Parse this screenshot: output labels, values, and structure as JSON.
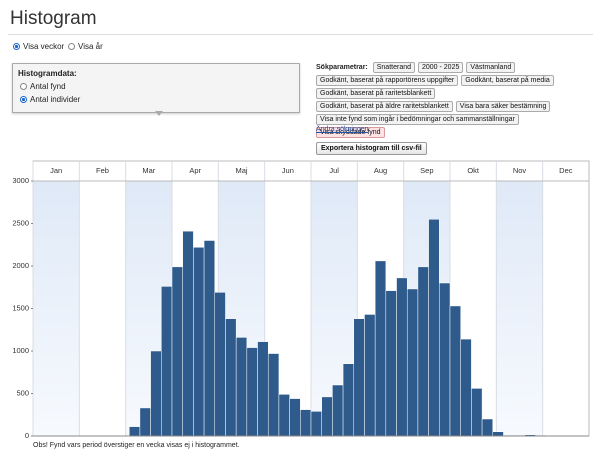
{
  "header": {
    "title": "Histogram"
  },
  "view_options": [
    "Visa veckor",
    "Visa år"
  ],
  "histogram_data": {
    "title": "Histogramdata:",
    "options": [
      "Antal fynd",
      "Antal individer"
    ]
  },
  "search_params": {
    "label": "Sökparametrar:",
    "rows": [
      [
        "Snatterand",
        "2000 - 2025",
        "Västmanland"
      ],
      [
        "Godkänt, baserat på rapportörens uppgifter",
        "Godkänt, baserat på media"
      ],
      [
        "Godkänt, baserat på raritetsblankett"
      ],
      [
        "Godkänt, baserat på äldre raritetsblankett",
        "Visa bara säker bestämning"
      ],
      [
        "Visa inte fynd som ingår i bedömningar och sammanställningar"
      ],
      [
        "Visa skyddade fynd"
      ]
    ],
    "link": "Ändra sökningen"
  },
  "export_button": "Exportera histogram till csv-fil",
  "chart_data": {
    "type": "bar",
    "color": "#2e5a8c",
    "months": [
      "Jan",
      "Feb",
      "Mar",
      "Apr",
      "Maj",
      "Jun",
      "Jul",
      "Aug",
      "Sep",
      "Okt",
      "Nov",
      "Dec"
    ],
    "values": [
      0,
      0,
      0,
      0,
      0,
      0,
      0,
      0,
      0,
      110,
      330,
      1000,
      1760,
      1990,
      2410,
      2220,
      2300,
      1690,
      1380,
      1160,
      1040,
      1110,
      970,
      490,
      440,
      310,
      290,
      460,
      600,
      850,
      1380,
      1430,
      2060,
      1710,
      1860,
      1730,
      1990,
      2550,
      1800,
      1530,
      1140,
      560,
      200,
      50,
      10,
      10,
      15,
      10,
      0,
      0,
      0,
      0
    ],
    "ylim": [
      0,
      3000
    ],
    "yticks": [
      0,
      500,
      1000,
      1500,
      2000,
      2500,
      3000
    ]
  },
  "footnote": "Obs! Fynd vars period överstiger en vecka visas ej i histogrammet."
}
